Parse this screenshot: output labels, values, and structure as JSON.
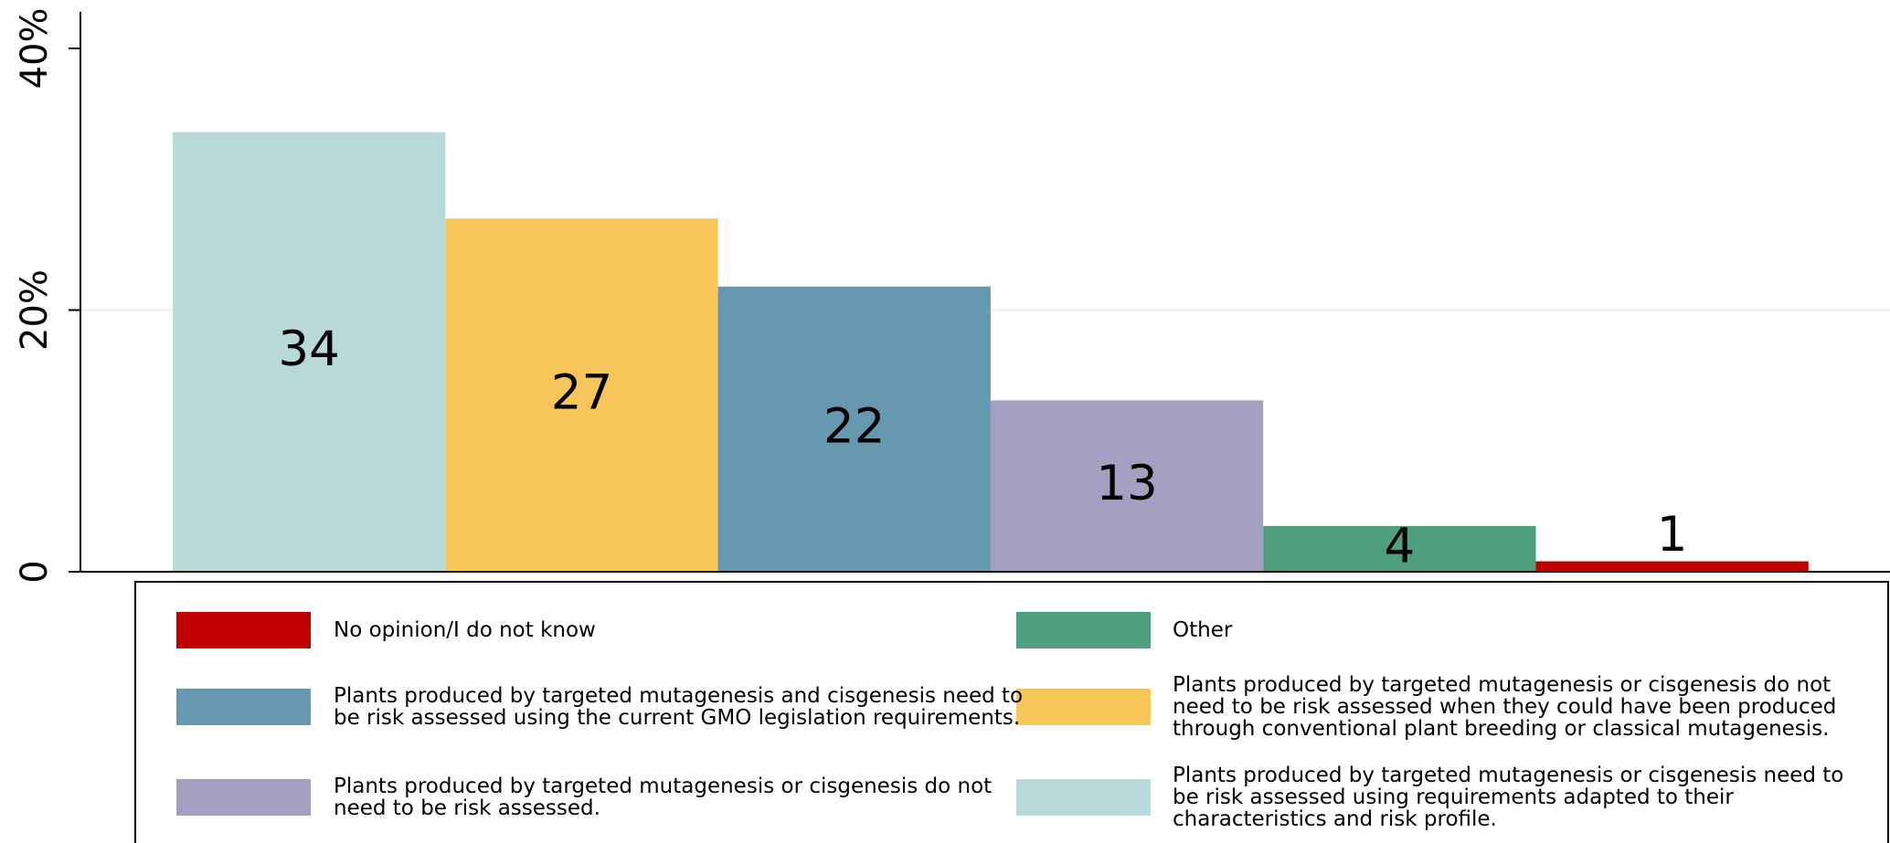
{
  "chart_data": {
    "type": "bar",
    "series": [
      {
        "name": "Plants produced by targeted mutagenesis or cisgenesis need to be risk assessed using requirements adapted to their characteristics and risk profile.",
        "color": "#b9d8da",
        "values": [
          33.6
        ],
        "value_labels": [
          "34"
        ]
      },
      {
        "name": "Plants produced by targeted mutagenesis or cisgenesis do not need to be risk assessed when they could have been produced through conventional plant breeding or classical mutagenesis.",
        "color": "#f7c55a",
        "values": [
          27
        ],
        "value_labels": [
          "27"
        ]
      },
      {
        "name": "Plants produced by targeted mutagenesis and cisgenesis need to be risk assessed using the current GMO legislation requirements.",
        "color": "#6699b0",
        "values": [
          21.8
        ],
        "value_labels": [
          "22"
        ]
      },
      {
        "name": "Plants produced by targeted mutagenesis or cisgenesis do not need to be risk assessed.",
        "color": "#a59fc1",
        "values": [
          13.1
        ],
        "value_labels": [
          "13"
        ]
      },
      {
        "name": "Other",
        "color": "#4f9e80",
        "values": [
          3.5
        ],
        "value_labels": [
          "4"
        ]
      },
      {
        "name": "No opinion/I do not know",
        "color": "#c00000",
        "values": [
          0.8
        ],
        "value_labels": [
          "1"
        ]
      }
    ],
    "ylim": [
      0,
      40
    ],
    "yticks": [
      0,
      {
        "value": 20,
        "label": "20%"
      },
      {
        "value": 40,
        "label": "40%"
      }
    ],
    "grid": true
  }
}
